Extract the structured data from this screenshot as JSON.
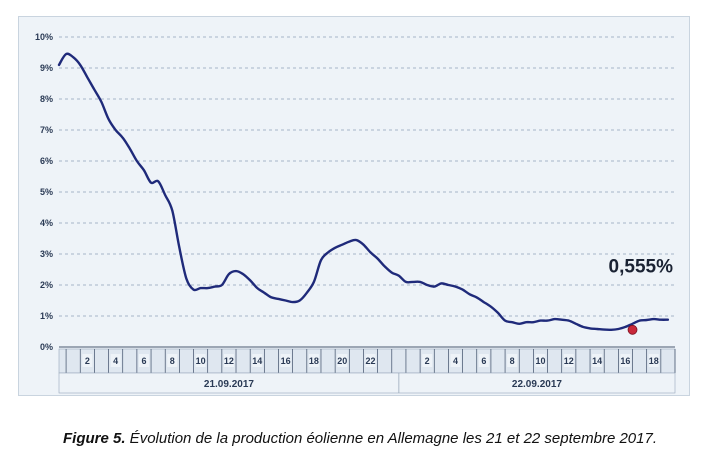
{
  "chart_data": {
    "type": "line",
    "title": "",
    "xlabel": "",
    "ylabel": "",
    "ylim": [
      0,
      10
    ],
    "y_ticks": [
      "0%",
      "1%",
      "2%",
      "3%",
      "4%",
      "5%",
      "6%",
      "7%",
      "8%",
      "9%",
      "10%"
    ],
    "grid": "horizontal dashed",
    "x_ticks_day1": [
      "2",
      "4",
      "6",
      "8",
      "10",
      "12",
      "14",
      "16",
      "18",
      "20",
      "22"
    ],
    "x_ticks_day2": [
      "2",
      "4",
      "6",
      "8",
      "10",
      "12",
      "14",
      "16",
      "18"
    ],
    "days": [
      "21.09.2017",
      "22.09.2017"
    ],
    "x_unit": "hours since 21.09.2017 00:00",
    "series": [
      {
        "name": "",
        "color": "#1f2a7a",
        "x": [
          0,
          0.5,
          1,
          1.5,
          2,
          2.5,
          3,
          3.5,
          4,
          4.5,
          5,
          5.5,
          6,
          6.5,
          7,
          7.5,
          8,
          8.5,
          9,
          9.5,
          10,
          10.5,
          11,
          11.5,
          12,
          12.5,
          13,
          13.5,
          14,
          14.5,
          15,
          15.5,
          16,
          16.5,
          17,
          17.5,
          18,
          18.5,
          19,
          19.5,
          20,
          20.5,
          21,
          21.5,
          22,
          22.5,
          23,
          23.5,
          24,
          24.5,
          25,
          25.5,
          26,
          26.5,
          27,
          27.5,
          28,
          28.5,
          29,
          29.5,
          30,
          30.5,
          31,
          31.5,
          32,
          32.5,
          33,
          33.5,
          34,
          34.5,
          35,
          35.5,
          36,
          36.5,
          37,
          37.5,
          38,
          38.5,
          39,
          39.5,
          40,
          40.5,
          41,
          41.5,
          42,
          42.5,
          43
        ],
        "values": [
          9.1,
          9.45,
          9.35,
          9.1,
          8.7,
          8.3,
          7.9,
          7.35,
          7.0,
          6.75,
          6.4,
          6.0,
          5.7,
          5.3,
          5.35,
          4.9,
          4.4,
          3.2,
          2.2,
          1.85,
          1.9,
          1.9,
          1.95,
          2.0,
          2.35,
          2.45,
          2.35,
          2.15,
          1.9,
          1.75,
          1.6,
          1.55,
          1.5,
          1.45,
          1.5,
          1.75,
          2.1,
          2.8,
          3.05,
          3.2,
          3.3,
          3.4,
          3.45,
          3.3,
          3.05,
          2.85,
          2.6,
          2.4,
          2.3,
          2.1,
          2.1,
          2.1,
          2.0,
          1.95,
          2.05,
          2.0,
          1.95,
          1.85,
          1.7,
          1.6,
          1.45,
          1.3,
          1.1,
          0.85,
          0.8,
          0.75,
          0.8,
          0.8,
          0.85,
          0.85,
          0.9,
          0.88,
          0.85,
          0.75,
          0.65,
          0.6,
          0.58,
          0.56,
          0.555,
          0.58,
          0.65,
          0.75,
          0.85,
          0.87,
          0.9,
          0.88,
          0.88
        ]
      }
    ],
    "highlight": {
      "x": 40.5,
      "value": 0.555,
      "label": "0,555%",
      "color": "#c8283a"
    }
  },
  "caption": {
    "bold": "Figure 5.",
    "text": " Évolution de la production éolienne en Allemagne les 21 et 22 septembre 2017."
  }
}
